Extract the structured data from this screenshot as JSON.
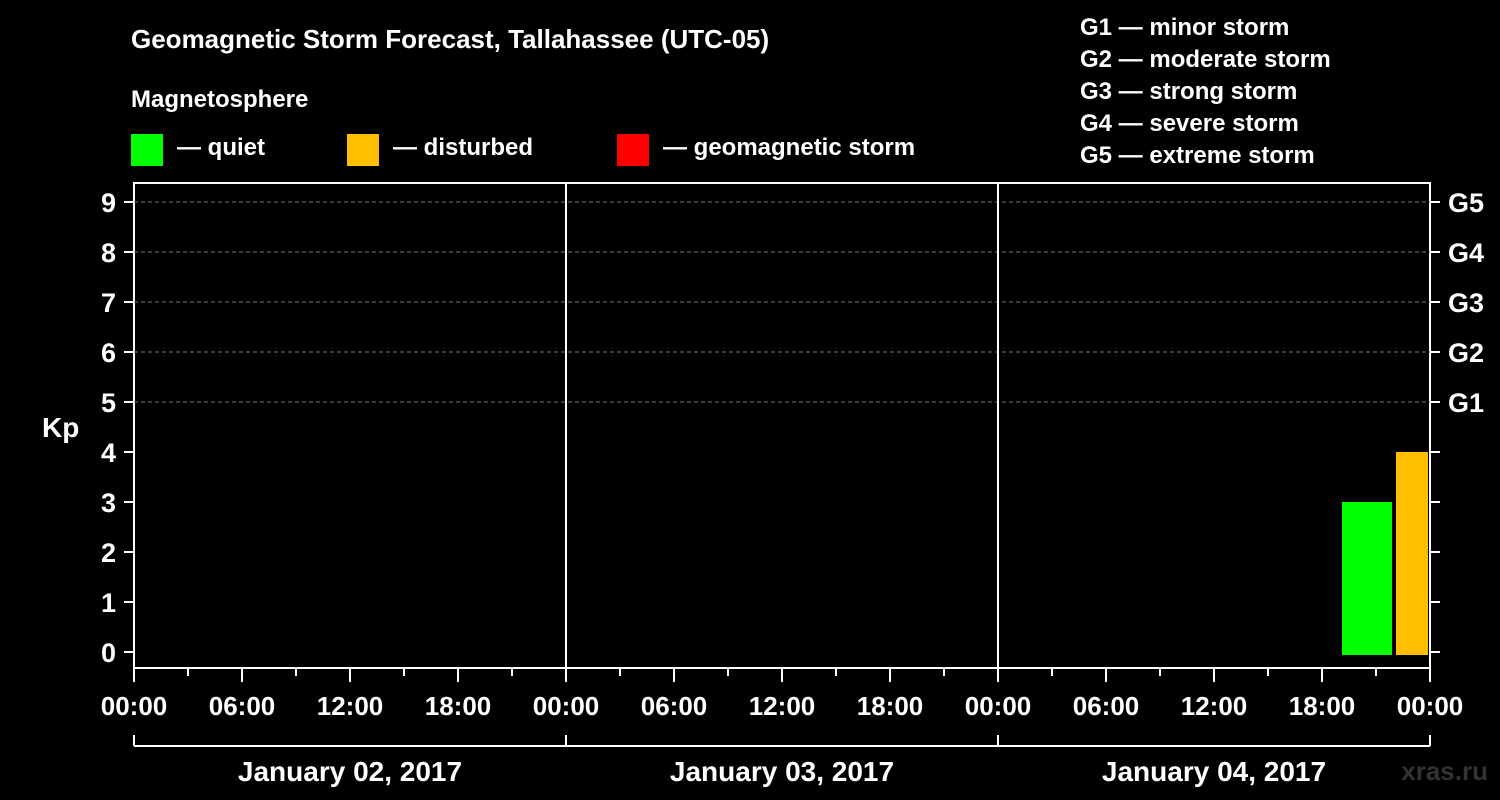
{
  "title": "Geomagnetic Storm Forecast, Tallahassee (UTC-05)",
  "legend_heading": "Magnetosphere",
  "legend": [
    {
      "label": "— quiet",
      "color": "#00ff00"
    },
    {
      "label": "— disturbed",
      "color": "#ffbf00"
    },
    {
      "label": "— geomagnetic storm",
      "color": "#ff0000"
    }
  ],
  "storm_levels": [
    "G1 — minor storm",
    "G2 — moderate storm",
    "G3 — strong storm",
    "G4 — severe storm",
    "G5 — extreme storm"
  ],
  "credit": "xras.ru",
  "chart_data": {
    "type": "bar",
    "ylabel": "Kp",
    "ylim": [
      0,
      9
    ],
    "yticks": [
      "0",
      "1",
      "2",
      "3",
      "4",
      "5",
      "6",
      "7",
      "8",
      "9"
    ],
    "right_ticks": [
      {
        "kp": 5,
        "label": "G1"
      },
      {
        "kp": 6,
        "label": "G2"
      },
      {
        "kp": 7,
        "label": "G3"
      },
      {
        "kp": 8,
        "label": "G4"
      },
      {
        "kp": 9,
        "label": "G5"
      }
    ],
    "grid": "dashed horizontal at Kp 5–9",
    "days": [
      "January 02, 2017",
      "January 03, 2017",
      "January 04, 2017"
    ],
    "time_ticks": [
      "00:00",
      "06:00",
      "12:00",
      "18:00",
      "00:00",
      "06:00",
      "12:00",
      "18:00",
      "00:00",
      "06:00",
      "12:00",
      "18:00",
      "00:00"
    ],
    "bars": [
      {
        "day": "January 04, 2017",
        "start": "19:00",
        "end": "22:00",
        "kp": 3,
        "status": "quiet",
        "color": "#00ff00"
      },
      {
        "day": "January 04, 2017",
        "start": "22:00",
        "end": "00:00",
        "kp": 4,
        "status": "disturbed",
        "color": "#ffbf00"
      }
    ]
  }
}
